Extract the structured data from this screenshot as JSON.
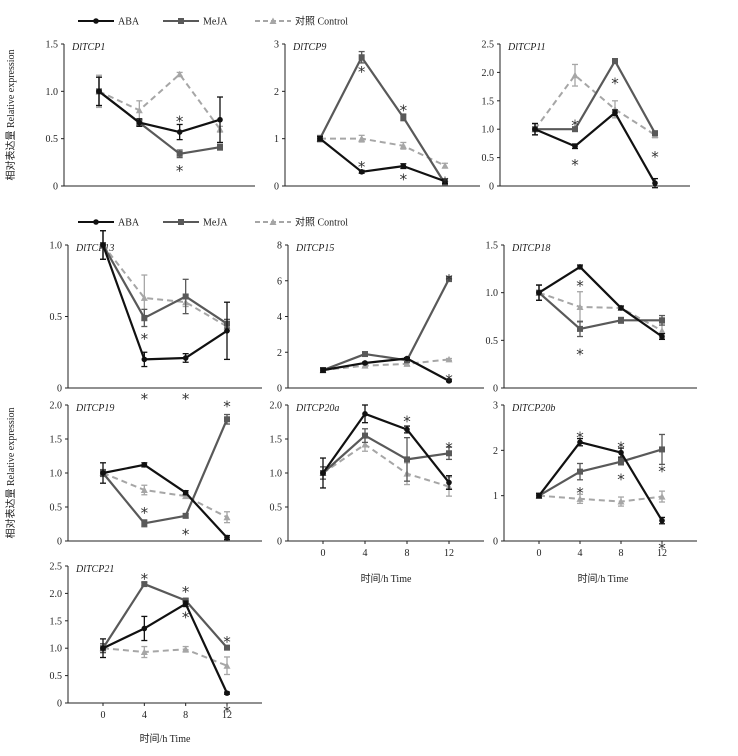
{
  "legend": {
    "ABA": "ABA",
    "MeJA": "MeJA",
    "control": "对照 Control"
  },
  "colors": {
    "ABA": "#111111",
    "MeJA": "#595959",
    "control": "#a6a6a6"
  },
  "ylabel": "相对表达量 Relative expression",
  "xlabel": "时间/h Time",
  "chart_data": [
    {
      "type": "line",
      "title": "DlTCP1",
      "categories": [
        "0",
        "4",
        "8",
        "12"
      ],
      "ylim": [
        0,
        1.5
      ],
      "yticks": [
        "0",
        "0.5",
        "1.0",
        "1.5"
      ],
      "series": [
        {
          "name": "ABA",
          "values": [
            1.0,
            0.67,
            0.57,
            0.7
          ],
          "errors": [
            0.15,
            0.04,
            0.08,
            0.24
          ]
        },
        {
          "name": "MeJA",
          "values": [
            1.0,
            0.67,
            0.34,
            0.41
          ],
          "errors": [
            0.15,
            0.03,
            0.04,
            0.03
          ]
        },
        {
          "name": "对照 Control",
          "values": [
            1.0,
            0.8,
            1.18,
            0.6
          ],
          "errors": [
            0.17,
            0.1,
            0.02,
            0.03
          ]
        }
      ],
      "significance": [
        {
          "x": "8",
          "y": 0.69,
          "mark": "*"
        },
        {
          "x": "8",
          "y": 0.17,
          "mark": "*"
        }
      ]
    },
    {
      "type": "line",
      "title": "DlTCP9",
      "categories": [
        "0",
        "4",
        "8",
        "12"
      ],
      "ylim": [
        0,
        3
      ],
      "yticks": [
        "0",
        "1",
        "2",
        "3"
      ],
      "series": [
        {
          "name": "ABA",
          "values": [
            1.0,
            0.3,
            0.42,
            0.1
          ],
          "errors": [
            0.05,
            0.03,
            0.05,
            0.05
          ]
        },
        {
          "name": "MeJA",
          "values": [
            1.0,
            2.72,
            1.45,
            0.05
          ],
          "errors": [
            0.05,
            0.12,
            0.07,
            0.03
          ]
        },
        {
          "name": "对照 Control",
          "values": [
            1.0,
            1.0,
            0.85,
            0.43
          ],
          "errors": [
            0.07,
            0.07,
            0.07,
            0.05
          ]
        }
      ],
      "significance": [
        {
          "x": "4",
          "y": 2.43,
          "mark": "*"
        },
        {
          "x": "8",
          "y": 1.62,
          "mark": "*"
        },
        {
          "x": "4",
          "y": 0.42,
          "mark": "*"
        },
        {
          "x": "8",
          "y": 0.16,
          "mark": "*"
        },
        {
          "x": "12",
          "y": 0.09,
          "mark": "*"
        }
      ]
    },
    {
      "type": "line",
      "title": "DlTCP11",
      "categories": [
        "0",
        "4",
        "8",
        "12"
      ],
      "ylim": [
        0,
        2.5
      ],
      "yticks": [
        "0",
        "0.5",
        "1.0",
        "1.5",
        "2.0",
        "2.5"
      ],
      "series": [
        {
          "name": "ABA",
          "values": [
            1.0,
            0.7,
            1.29,
            0.05
          ],
          "errors": [
            0.1,
            0.04,
            0.05,
            0.08
          ]
        },
        {
          "name": "MeJA",
          "values": [
            1.0,
            1.0,
            2.2,
            0.93
          ],
          "errors": [
            0.1,
            0.03,
            0.04,
            0.03
          ]
        },
        {
          "name": "对照 Control",
          "values": [
            1.0,
            1.95,
            1.35,
            0.9
          ],
          "errors": [
            0.1,
            0.19,
            0.15,
            0.05
          ]
        }
      ],
      "significance": [
        {
          "x": "4",
          "y": 1.08,
          "mark": "*"
        },
        {
          "x": "8",
          "y": 1.82,
          "mark": "*"
        },
        {
          "x": "4",
          "y": 0.39,
          "mark": "*"
        },
        {
          "x": "12",
          "y": 0.53,
          "mark": "*"
        }
      ]
    },
    {
      "type": "line",
      "title": "DlTCP13",
      "categories": [
        "0",
        "4",
        "8",
        "12"
      ],
      "ylim": [
        0,
        1.0
      ],
      "yticks": [
        "0",
        "0.5",
        "1.0"
      ],
      "series": [
        {
          "name": "ABA",
          "values": [
            1.0,
            0.2,
            0.21,
            0.4
          ],
          "errors": [
            0.1,
            0.05,
            0.03,
            0.2
          ]
        },
        {
          "name": "MeJA",
          "values": [
            1.0,
            0.49,
            0.64,
            0.45
          ],
          "errors": [
            0.1,
            0.06,
            0.12,
            0.03
          ]
        },
        {
          "name": "对照 Control",
          "values": [
            1.0,
            0.63,
            0.6,
            0.43
          ],
          "errors": [
            0.1,
            0.16,
            0.03,
            0.03
          ]
        }
      ],
      "significance": [
        {
          "x": "4",
          "y": 0.35,
          "mark": "*"
        },
        {
          "x": "4",
          "y": -0.07,
          "mark": "*"
        },
        {
          "x": "8",
          "y": -0.07,
          "mark": "*"
        }
      ]
    },
    {
      "type": "line",
      "title": "DlTCP15",
      "categories": [
        "0",
        "4",
        "8",
        "12"
      ],
      "ylim": [
        0,
        8
      ],
      "yticks": [
        "0",
        "2",
        "4",
        "6",
        "8"
      ],
      "series": [
        {
          "name": "ABA",
          "values": [
            1.0,
            1.4,
            1.65,
            0.4
          ],
          "errors": [
            0.12,
            0.05,
            0.05,
            0.05
          ]
        },
        {
          "name": "MeJA",
          "values": [
            1.0,
            1.9,
            1.55,
            6.1
          ],
          "errors": [
            0.12,
            0.08,
            0.12,
            0.14
          ]
        },
        {
          "name": "对照 Control",
          "values": [
            1.0,
            1.25,
            1.35,
            1.6
          ],
          "errors": [
            0.1,
            0.08,
            0.08,
            0.05
          ]
        }
      ],
      "significance": [
        {
          "x": "12",
          "y": 6.1,
          "mark": "*"
        },
        {
          "x": "12",
          "y": 0.5,
          "mark": "*"
        }
      ]
    },
    {
      "type": "line",
      "title": "DlTCP18",
      "categories": [
        "0",
        "4",
        "8",
        "12"
      ],
      "ylim": [
        0,
        1.5
      ],
      "yticks": [
        "0",
        "0.5",
        "1.0",
        "1.5"
      ],
      "series": [
        {
          "name": "ABA",
          "values": [
            1.0,
            1.27,
            0.84,
            0.54
          ],
          "errors": [
            0.08,
            0.02,
            0.02,
            0.03
          ]
        },
        {
          "name": "MeJA",
          "values": [
            1.0,
            0.62,
            0.71,
            0.71
          ],
          "errors": [
            0.08,
            0.08,
            0.03,
            0.05
          ]
        },
        {
          "name": "对照 Control",
          "values": [
            1.0,
            0.85,
            0.84,
            0.6
          ],
          "errors": [
            0.08,
            0.16,
            0.02,
            0.08
          ]
        }
      ],
      "significance": [
        {
          "x": "4",
          "y": 1.08,
          "mark": "*"
        },
        {
          "x": "4",
          "y": 0.36,
          "mark": "*"
        }
      ]
    },
    {
      "type": "line",
      "title": "DlTCP19",
      "categories": [
        "0",
        "4",
        "8",
        "12"
      ],
      "ylim": [
        0,
        2.0
      ],
      "yticks": [
        "0",
        "0.5",
        "1.0",
        "1.5",
        "2.0"
      ],
      "series": [
        {
          "name": "ABA",
          "values": [
            1.0,
            1.12,
            0.71,
            0.05
          ],
          "errors": [
            0.15,
            0.03,
            0.03,
            0.03
          ]
        },
        {
          "name": "MeJA",
          "values": [
            1.0,
            0.26,
            0.37,
            1.79
          ],
          "errors": [
            0.05,
            0.05,
            0.03,
            0.07
          ]
        },
        {
          "name": "对照 Control",
          "values": [
            1.0,
            0.75,
            0.66,
            0.35
          ],
          "errors": [
            0.05,
            0.07,
            0.03,
            0.08
          ]
        }
      ],
      "significance": [
        {
          "x": "12",
          "y": 1.99,
          "mark": "*"
        },
        {
          "x": "4",
          "y": 0.43,
          "mark": "*"
        },
        {
          "x": "8",
          "y": 0.11,
          "mark": "*"
        }
      ]
    },
    {
      "type": "line",
      "title": "DlTCP20a",
      "categories": [
        "0",
        "4",
        "8",
        "12"
      ],
      "ylim": [
        0,
        2.0
      ],
      "yticks": [
        "0",
        "0.5",
        "1.0",
        "1.5",
        "2.0"
      ],
      "series": [
        {
          "name": "ABA",
          "values": [
            1.0,
            1.87,
            1.64,
            0.86
          ],
          "errors": [
            0.22,
            0.13,
            0.05,
            0.1
          ]
        },
        {
          "name": "MeJA",
          "values": [
            1.0,
            1.55,
            1.2,
            1.29
          ],
          "errors": [
            0.09,
            0.1,
            0.32,
            0.09
          ]
        },
        {
          "name": "对照 Control",
          "values": [
            1.0,
            1.42,
            0.99,
            0.8
          ],
          "errors": [
            0.09,
            0.1,
            0.16,
            0.14
          ]
        }
      ],
      "significance": [
        {
          "x": "8",
          "y": 1.77,
          "mark": "*"
        },
        {
          "x": "12",
          "y": 1.38,
          "mark": "*"
        }
      ]
    },
    {
      "type": "line",
      "title": "DlTCP20b",
      "categories": [
        "0",
        "4",
        "8",
        "12"
      ],
      "ylim": [
        0,
        3
      ],
      "yticks": [
        "0",
        "1",
        "2",
        "3"
      ],
      "series": [
        {
          "name": "ABA",
          "values": [
            1.0,
            2.18,
            1.95,
            0.45
          ],
          "errors": [
            0.05,
            0.08,
            0.1,
            0.07
          ]
        },
        {
          "name": "MeJA",
          "values": [
            1.0,
            1.53,
            1.75,
            2.02
          ],
          "errors": [
            0.05,
            0.18,
            0.07,
            0.33
          ]
        },
        {
          "name": "对照 Control",
          "values": [
            1.0,
            0.93,
            0.87,
            0.98
          ],
          "errors": [
            0.05,
            0.1,
            0.1,
            0.12
          ]
        }
      ],
      "significance": [
        {
          "x": "4",
          "y": 2.3,
          "mark": "*"
        },
        {
          "x": "8",
          "y": 2.08,
          "mark": "*"
        },
        {
          "x": "12",
          "y": 1.55,
          "mark": "*"
        },
        {
          "x": "4",
          "y": 1.08,
          "mark": "*"
        },
        {
          "x": "8",
          "y": 1.38,
          "mark": "*"
        },
        {
          "x": "12",
          "y": -0.14,
          "mark": "*"
        }
      ]
    },
    {
      "type": "line",
      "title": "DlTCP21",
      "categories": [
        "0",
        "4",
        "8",
        "12"
      ],
      "ylim": [
        0,
        2.5
      ],
      "yticks": [
        "0",
        "0.5",
        "1.0",
        "1.5",
        "2.0",
        "2.5"
      ],
      "series": [
        {
          "name": "ABA",
          "values": [
            1.0,
            1.36,
            1.81,
            0.18
          ],
          "errors": [
            0.17,
            0.22,
            0.05,
            0.02
          ]
        },
        {
          "name": "MeJA",
          "values": [
            1.0,
            2.17,
            1.87,
            1.01
          ],
          "errors": [
            0.08,
            0.03,
            0.03,
            0.03
          ]
        },
        {
          "name": "对照 Control",
          "values": [
            1.0,
            0.93,
            0.98,
            0.68
          ],
          "errors": [
            0.08,
            0.1,
            0.05,
            0.16
          ]
        }
      ],
      "significance": [
        {
          "x": "4",
          "y": 2.28,
          "mark": "*"
        },
        {
          "x": "8",
          "y": 2.04,
          "mark": "*"
        },
        {
          "x": "8",
          "y": 1.58,
          "mark": "*"
        },
        {
          "x": "12",
          "y": 1.13,
          "mark": "*"
        },
        {
          "x": "12",
          "y": -0.14,
          "mark": "*"
        }
      ]
    }
  ]
}
